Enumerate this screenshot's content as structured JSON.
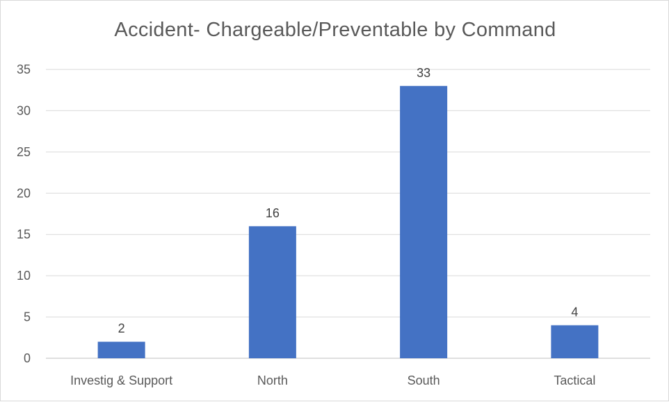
{
  "chart_data": {
    "type": "bar",
    "title": "Accident- Chargeable/Preventable by Command",
    "categories": [
      "Investig & Support",
      "North",
      "South",
      "Tactical"
    ],
    "values": [
      2,
      16,
      33,
      4
    ],
    "ylim": [
      0,
      35
    ],
    "yticks": [
      0,
      5,
      10,
      15,
      20,
      25,
      30,
      35
    ],
    "xlabel": "",
    "ylabel": "",
    "grid": true,
    "legend": "none",
    "bar_color": "#4472c4",
    "data_labels": true
  }
}
